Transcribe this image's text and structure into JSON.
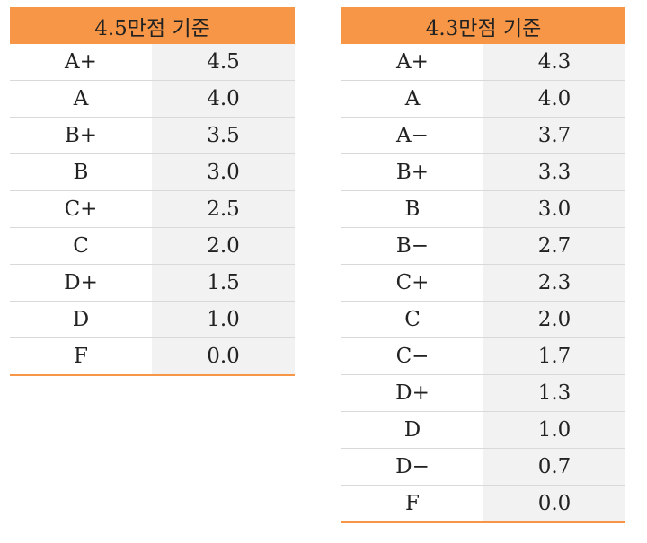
{
  "tables": [
    {
      "title": "4.5만점 기준",
      "rows": [
        {
          "grade": "A+",
          "points": "4.5"
        },
        {
          "grade": "A",
          "points": "4.0"
        },
        {
          "grade": "B+",
          "points": "3.5"
        },
        {
          "grade": "B",
          "points": "3.0"
        },
        {
          "grade": "C+",
          "points": "2.5"
        },
        {
          "grade": "C",
          "points": "2.0"
        },
        {
          "grade": "D+",
          "points": "1.5"
        },
        {
          "grade": "D",
          "points": "1.0"
        },
        {
          "grade": "F",
          "points": "0.0"
        }
      ]
    },
    {
      "title": "4.3만점 기준",
      "rows": [
        {
          "grade": "A+",
          "points": "4.3"
        },
        {
          "grade": "A",
          "points": "4.0"
        },
        {
          "grade": "A−",
          "points": "3.7"
        },
        {
          "grade": "B+",
          "points": "3.3"
        },
        {
          "grade": "B",
          "points": "3.0"
        },
        {
          "grade": "B−",
          "points": "2.7"
        },
        {
          "grade": "C+",
          "points": "2.3"
        },
        {
          "grade": "C",
          "points": "2.0"
        },
        {
          "grade": "C−",
          "points": "1.7"
        },
        {
          "grade": "D+",
          "points": "1.3"
        },
        {
          "grade": "D",
          "points": "1.0"
        },
        {
          "grade": "D−",
          "points": "0.7"
        },
        {
          "grade": "F",
          "points": "0.0"
        }
      ]
    }
  ],
  "colors": {
    "header_background": "#f79646",
    "points_background": "#f2f2f2",
    "row_divider": "#d9d9d9"
  }
}
